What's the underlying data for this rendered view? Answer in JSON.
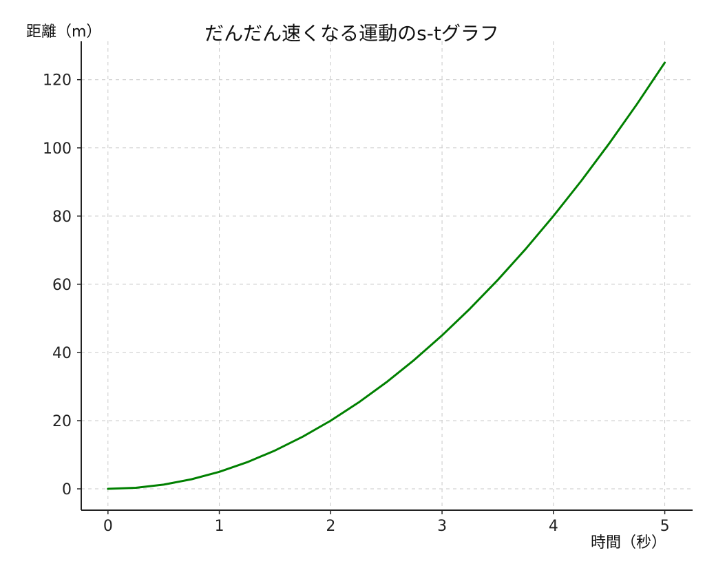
{
  "chart_data": {
    "type": "line",
    "title": "だんだん速くなる運動のs-tグラフ",
    "xlabel": "時間（秒）",
    "ylabel": "距離（m）",
    "xlim": [
      -0.24,
      5.25
    ],
    "ylim": [
      -6.25,
      131.25
    ],
    "xticks": [
      0,
      1,
      2,
      3,
      4,
      5
    ],
    "yticks": [
      0,
      20,
      40,
      60,
      80,
      100,
      120
    ],
    "grid": true,
    "series": [
      {
        "color": "#008000",
        "x": [
          0,
          0.25,
          0.5,
          0.75,
          1,
          1.25,
          1.5,
          1.75,
          2,
          2.25,
          2.5,
          2.75,
          3,
          3.25,
          3.5,
          3.75,
          4,
          4.25,
          4.5,
          4.75,
          5
        ],
        "y": [
          0,
          0.3125,
          1.25,
          2.8125,
          5,
          7.8125,
          11.25,
          15.3125,
          20,
          25.3125,
          31.25,
          37.8125,
          45,
          52.8125,
          61.25,
          70.3125,
          80,
          90.3125,
          101.25,
          112.8125,
          125
        ]
      }
    ]
  }
}
